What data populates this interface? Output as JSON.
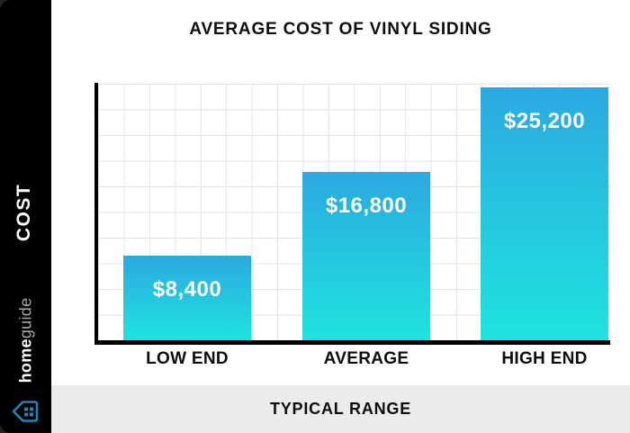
{
  "sidebar": {
    "brand": {
      "bold": "home",
      "light": "guide"
    }
  },
  "chart_data": {
    "type": "bar",
    "title": "AVERAGE COST OF VINYL SIDING",
    "categories": [
      "LOW END",
      "AVERAGE",
      "HIGH END"
    ],
    "values": [
      8400,
      16800,
      25200
    ],
    "value_labels": [
      "$8,400",
      "$16,800",
      "$25,200"
    ],
    "xlabel": "TYPICAL RANGE",
    "ylabel": "COST",
    "ylim": [
      0,
      28000
    ],
    "grid": true,
    "legend": "none",
    "bar_gradient_top": "#2BA9E1",
    "bar_gradient_bottom": "#1FE3DE"
  },
  "colors": {
    "sidebar_bg": "#000000",
    "card_bg": "#ffffff",
    "footer_bg": "#ebebeb",
    "grid_line": "#e3e3e3",
    "axis": "#000000",
    "text_dark": "#0d0d0d",
    "text_light": "#ffffff",
    "brand_icon_blue": "#2484b8"
  }
}
